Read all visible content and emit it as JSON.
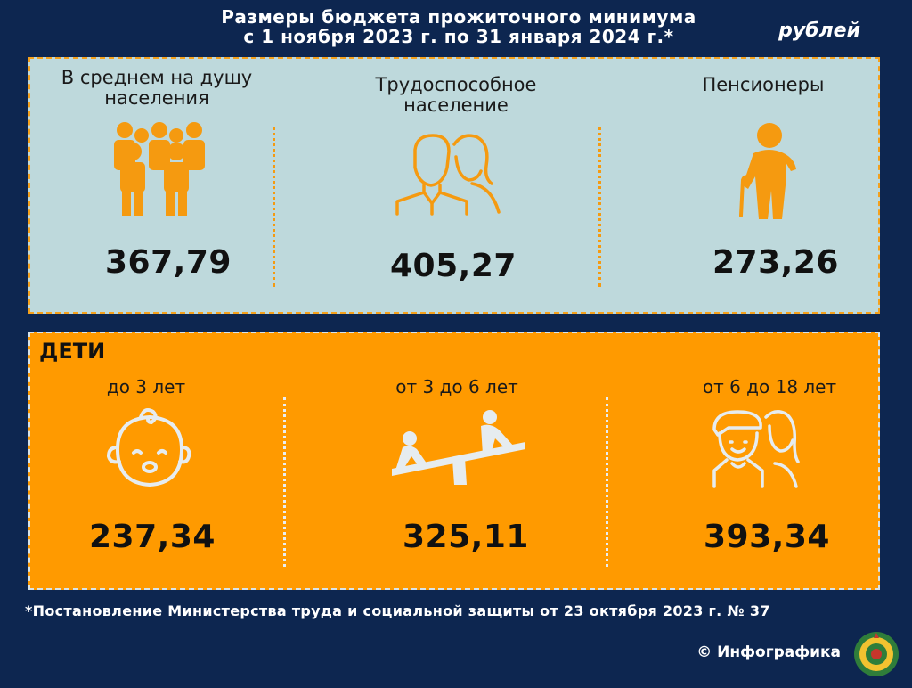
{
  "header": {
    "title_line1": "Размеры бюджета прожиточного минимума",
    "title_line2": "с 1 ноября 2023 г. по 31 января 2024 г.*",
    "unit": "рублей"
  },
  "adults": [
    {
      "label_line1": "В среднем на душу",
      "label_line2": "населения",
      "value": "367,79",
      "icon": "group-people-icon"
    },
    {
      "label_line1": "Трудоспособное",
      "label_line2": "население",
      "value": "405,27",
      "icon": "man-woman-icon"
    },
    {
      "label_line1": "Пенсионеры",
      "label_line2": "",
      "value": "273,26",
      "icon": "elderly-person-with-cane-icon"
    }
  ],
  "children": {
    "heading": "ДЕТИ",
    "groups": [
      {
        "label": "до 3 лет",
        "value": "237,34",
        "icon": "baby-face-icon"
      },
      {
        "label": "от 3 до 6 лет",
        "value": "325,11",
        "icon": "seesaw-kids-icon"
      },
      {
        "label": "от 6 до 18 лет",
        "value": "393,34",
        "icon": "teen-boy-girl-icon"
      }
    ]
  },
  "footer": {
    "footnote": "*Постановление Министерства труда и социальной защиты от 23 октября 2023 г. № 37",
    "credit": "© Инфографика"
  },
  "colors": {
    "background": "#0d2650",
    "top_panel": "#bed9dc",
    "bottom_panel": "#ff9a00",
    "icon_orange": "#f59a10",
    "icon_light": "#e6ecef"
  }
}
